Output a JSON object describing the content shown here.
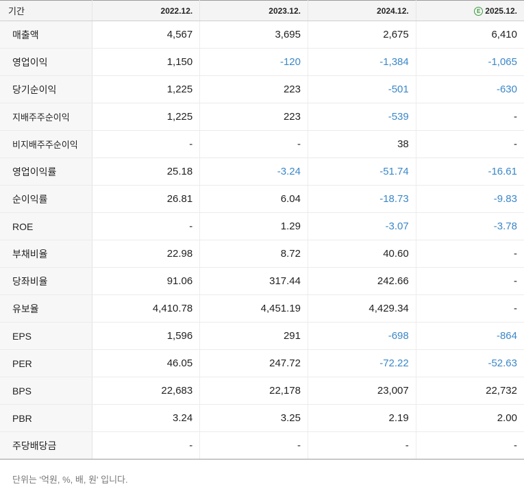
{
  "table": {
    "header": {
      "label": "기간",
      "columns": [
        "2022.12.",
        "2023.12.",
        "2024.12.",
        "2025.12."
      ],
      "estimate_badge": "E"
    },
    "rows": [
      {
        "label": "매출액",
        "values": [
          "4,567",
          "3,695",
          "2,675",
          "6,410"
        ]
      },
      {
        "label": "영업이익",
        "values": [
          "1,150",
          "-120",
          "-1,384",
          "-1,065"
        ]
      },
      {
        "label": "당기순이익",
        "values": [
          "1,225",
          "223",
          "-501",
          "-630"
        ]
      },
      {
        "label": "지배주주순이익",
        "values": [
          "1,225",
          "223",
          "-539",
          "-"
        ]
      },
      {
        "label": "비지배주주순이익",
        "values": [
          "-",
          "-",
          "38",
          "-"
        ]
      },
      {
        "label": "영업이익률",
        "values": [
          "25.18",
          "-3.24",
          "-51.74",
          "-16.61"
        ]
      },
      {
        "label": "순이익률",
        "values": [
          "26.81",
          "6.04",
          "-18.73",
          "-9.83"
        ]
      },
      {
        "label": "ROE",
        "values": [
          "-",
          "1.29",
          "-3.07",
          "-3.78"
        ]
      },
      {
        "label": "부채비율",
        "values": [
          "22.98",
          "8.72",
          "40.60",
          "-"
        ]
      },
      {
        "label": "당좌비율",
        "values": [
          "91.06",
          "317.44",
          "242.66",
          "-"
        ]
      },
      {
        "label": "유보율",
        "values": [
          "4,410.78",
          "4,451.19",
          "4,429.34",
          "-"
        ]
      },
      {
        "label": "EPS",
        "values": [
          "1,596",
          "291",
          "-698",
          "-864"
        ]
      },
      {
        "label": "PER",
        "values": [
          "46.05",
          "247.72",
          "-72.22",
          "-52.63"
        ]
      },
      {
        "label": "BPS",
        "values": [
          "22,683",
          "22,178",
          "23,007",
          "22,732"
        ]
      },
      {
        "label": "PBR",
        "values": [
          "3.24",
          "3.25",
          "2.19",
          "2.00"
        ]
      },
      {
        "label": "주당배당금",
        "values": [
          "-",
          "-",
          "-",
          "-"
        ]
      }
    ]
  },
  "colors": {
    "negative": "#3a87c8",
    "estimate": "#3a9a3a"
  },
  "note": "단위는 '억원, %, 배, 원' 입니다."
}
